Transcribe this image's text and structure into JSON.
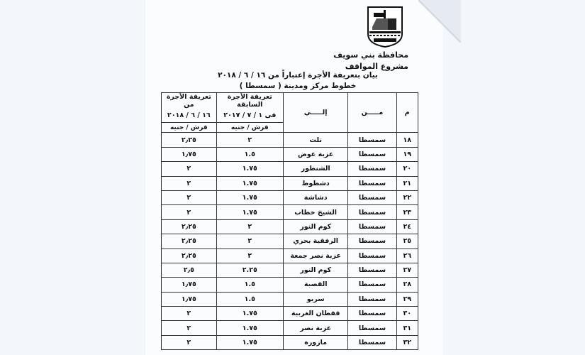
{
  "header": {
    "logo_text": "محافظة بني سويف",
    "governorate": "محافظة بني سويف",
    "project": "مشروع المواقف",
    "title": "بيان بتعريفة الأجرة إعتباراً من ١٦ / ٦ / ٢٠١٨",
    "subtitle": "خطوط مركز ومدينة ( سمسطا )"
  },
  "table": {
    "columns": {
      "m": "م",
      "from": "مـــــن",
      "to": "إلـــــي",
      "old_fare_line1": "تعريفة الأجرة السابقة",
      "old_fare_line2": "فى ١ / ٧ / ٢٠١٧",
      "new_fare_line1": "تعريفة الأجرة من",
      "new_fare_line2": "١٦ / ٦ / ٢٠١٨",
      "unit_old": "قرش / جنيه",
      "unit_new": "قرش / جنيه"
    },
    "rows": [
      {
        "m": "١٨",
        "from": "سمسطا",
        "to": "تلت",
        "old": "٢",
        "new": "٢٫٢٥"
      },
      {
        "m": "١٩",
        "from": "سمسطا",
        "to": "عزبة عوض",
        "old": "١.٥",
        "new": "١٫٧٥"
      },
      {
        "m": "٢٠",
        "from": "سمسطا",
        "to": "الشنطور",
        "old": "١.٧٥",
        "new": "٢"
      },
      {
        "m": "٢١",
        "from": "سمسطا",
        "to": "دشطوط",
        "old": "١.٧٥",
        "new": "٢"
      },
      {
        "m": "٢٢",
        "from": "سمسطا",
        "to": "دشاشة",
        "old": "١.٧٥",
        "new": "٢"
      },
      {
        "m": "٢٣",
        "from": "سمسطا",
        "to": "الشيخ خطاب",
        "old": "١.٧٥",
        "new": "٢"
      },
      {
        "m": "٢٤",
        "from": "سمسطا",
        "to": "كوم النور",
        "old": "٢",
        "new": "٢٫٢٥"
      },
      {
        "m": "٢٥",
        "from": "سمسطا",
        "to": "الرفقية بحري",
        "old": "٢",
        "new": "٢٫٢٥"
      },
      {
        "m": "٢٦",
        "from": "سمسطا",
        "to": "عزبة نصر جمعة",
        "old": "٢",
        "new": "٢٫٢٥"
      },
      {
        "m": "٢٧",
        "from": "سمسطا",
        "to": "كوم النور",
        "old": "٢.٢٥",
        "new": "٢٫٥"
      },
      {
        "m": "٢٨",
        "from": "سمسطا",
        "to": "القصبة",
        "old": "١.٥",
        "new": "١٫٧٥"
      },
      {
        "m": "٢٩",
        "from": "سمسطا",
        "to": "سربو",
        "old": "١.٥",
        "new": "١٫٧٥"
      },
      {
        "m": "٣٠",
        "from": "سمسطا",
        "to": "قفطان الغربية",
        "old": "١.٧٥",
        "new": "٢"
      },
      {
        "m": "٣١",
        "from": "سمسطا",
        "to": "عزبة نصر",
        "old": "١.٧٥",
        "new": "٢"
      },
      {
        "m": "٣٢",
        "from": "سمسطا",
        "to": "مازورة",
        "old": "١.٧٥",
        "new": "٢"
      }
    ]
  }
}
